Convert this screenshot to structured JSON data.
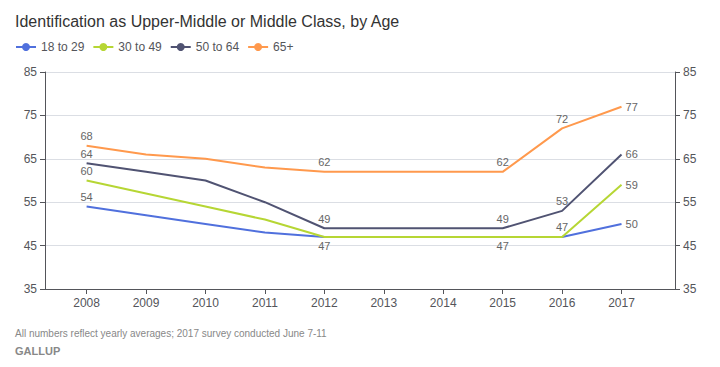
{
  "chart_data": {
    "type": "line",
    "title": "Identification as Upper-Middle or Middle Class, by Age",
    "footnote": "All numbers reflect yearly averages; 2017 survey conducted June 7-11",
    "source": "GALLUP",
    "x": [
      2008,
      2009,
      2010,
      2011,
      2012,
      2013,
      2014,
      2015,
      2016,
      2017
    ],
    "series": [
      {
        "name": "18 to 29",
        "values": [
          54,
          52,
          50,
          48,
          47,
          47,
          47,
          47,
          47,
          50
        ]
      },
      {
        "name": "30 to 49",
        "values": [
          60,
          57,
          54,
          51,
          47,
          47,
          47,
          47,
          47,
          59
        ]
      },
      {
        "name": "50 to 64",
        "values": [
          64,
          62,
          60,
          55,
          49,
          49,
          49,
          49,
          53,
          66
        ]
      },
      {
        "name": "65+",
        "values": [
          68,
          66,
          65,
          63,
          62,
          62,
          62,
          62,
          72,
          77
        ]
      }
    ],
    "xlim": [
      2007.3,
      2017.9
    ],
    "xticks": [
      2008,
      2009,
      2010,
      2011,
      2012,
      2013,
      2014,
      2015,
      2016,
      2017
    ],
    "ylim": [
      35,
      85
    ],
    "yticks": [
      35,
      45,
      55,
      65,
      75,
      85
    ],
    "y2lim": [
      35,
      85
    ],
    "y2ticks": [
      35,
      45,
      55,
      65,
      75,
      85
    ],
    "grid": true,
    "legend": "upper left",
    "annotations": [
      {
        "series": "18 to 29",
        "x": 2008,
        "y": 54,
        "text": "54"
      },
      {
        "series": "18 to 29",
        "x": 2012,
        "y": 47,
        "text": "47"
      },
      {
        "series": "18 to 29",
        "x": 2015,
        "y": 47,
        "text": "47"
      },
      {
        "series": "18 to 29",
        "x": 2017,
        "y": 50,
        "text": "50"
      },
      {
        "series": "30 to 49",
        "x": 2008,
        "y": 60,
        "text": "60"
      },
      {
        "series": "30 to 49",
        "x": 2016,
        "y": 47,
        "text": "47"
      },
      {
        "series": "30 to 49",
        "x": 2017,
        "y": 59,
        "text": "59"
      },
      {
        "series": "50 to 64",
        "x": 2008,
        "y": 64,
        "text": "64"
      },
      {
        "series": "50 to 64",
        "x": 2012,
        "y": 49,
        "text": "49"
      },
      {
        "series": "50 to 64",
        "x": 2015,
        "y": 49,
        "text": "49"
      },
      {
        "series": "50 to 64",
        "x": 2016,
        "y": 53,
        "text": "53"
      },
      {
        "series": "50 to 64",
        "x": 2017,
        "y": 66,
        "text": "66"
      },
      {
        "series": "65+",
        "x": 2008,
        "y": 68,
        "text": "68"
      },
      {
        "series": "65+",
        "x": 2012,
        "y": 62,
        "text": "62"
      },
      {
        "series": "65+",
        "x": 2015,
        "y": 62,
        "text": "62"
      },
      {
        "series": "65+",
        "x": 2016,
        "y": 72,
        "text": "72"
      },
      {
        "series": "65+",
        "x": 2017,
        "y": 77,
        "text": "77"
      }
    ]
  }
}
